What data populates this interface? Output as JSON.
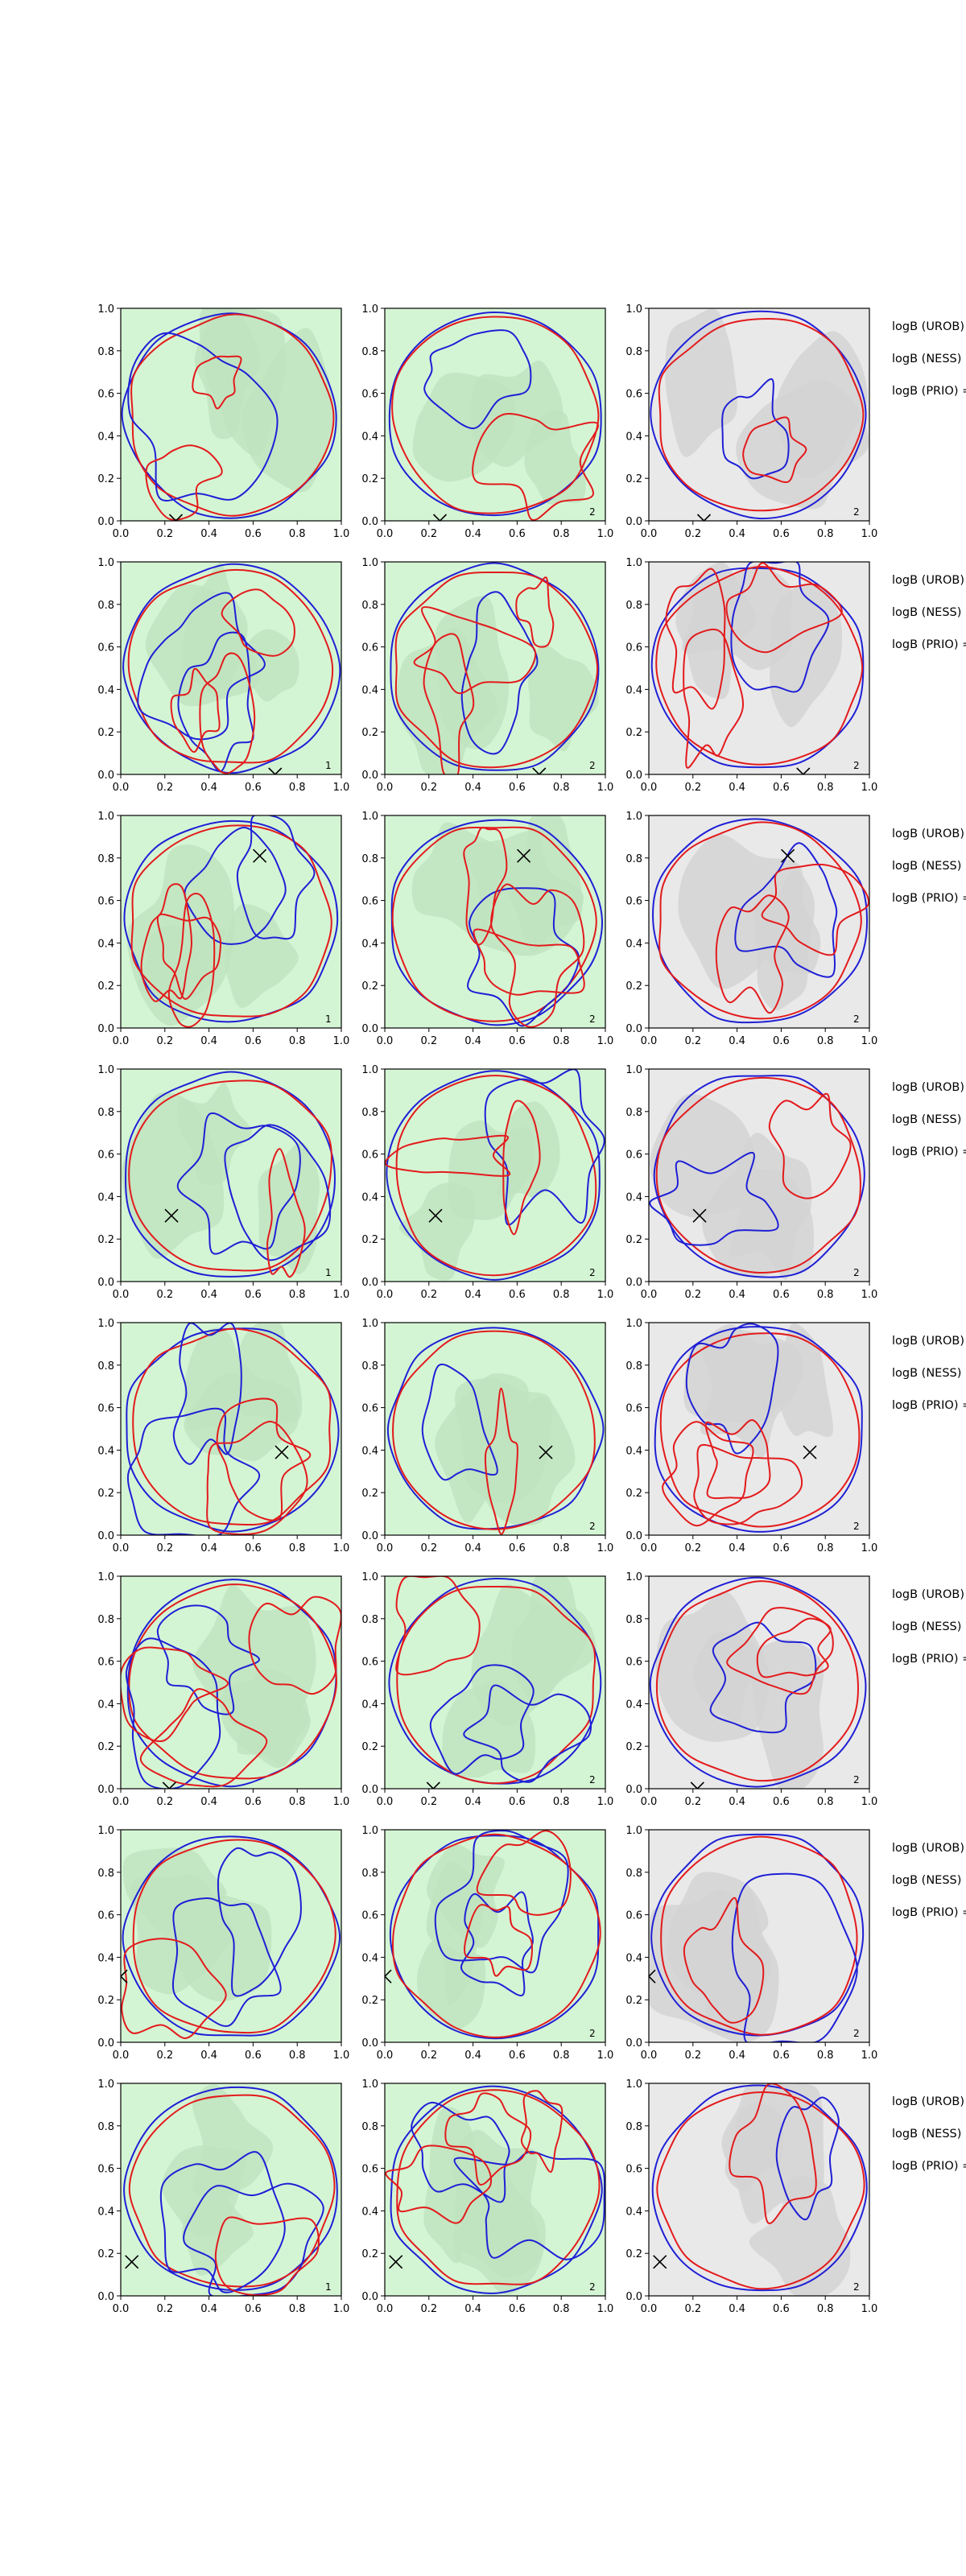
{
  "figure": {
    "description_labels": [
      "logB (UROB) =",
      "logB (NESS) =",
      "logB (PRIO) ="
    ]
  },
  "chart_data": {
    "type": "contour-grid",
    "title": "",
    "xlabel": "",
    "ylabel": "",
    "xlim": [
      0.0,
      1.0
    ],
    "ylim": [
      0.0,
      1.0
    ],
    "x_tick_labels": [
      "0.0",
      "0.2",
      "0.4",
      "0.6",
      "0.8",
      "1.0"
    ],
    "y_tick_labels": [
      "0.0",
      "0.2",
      "0.4",
      "0.6",
      "0.8",
      "1.0"
    ],
    "grid": false,
    "colors": {
      "red_contour": "#e31a1c",
      "blue_contour": "#1f1fd6",
      "green_fill_light": "#d4f5d4",
      "green_fill_mid": "#bfe3bf",
      "gray_fill_light": "#e9e9e9",
      "gray_fill_mid": "#d4d4d4",
      "marker": "#000000"
    },
    "rows": [
      {
        "row_labels": [
          "logB (UROB) =",
          "logB (NESS) =",
          "logB (PRIO) ="
        ],
        "marker": [
          0.25,
          0.0
        ],
        "panel_numbers": [
          "",
          "2",
          "2"
        ]
      },
      {
        "row_labels": [
          "logB (UROB) =",
          "logB (NESS) =",
          "logB (PRIO) ="
        ],
        "marker": [
          0.7,
          0.0
        ],
        "panel_numbers": [
          "1",
          "2",
          "2"
        ]
      },
      {
        "row_labels": [
          "logB (UROB) =",
          "logB (NESS) =",
          "logB (PRIO) ="
        ],
        "marker": [
          0.63,
          0.81
        ],
        "panel_numbers": [
          "1",
          "2",
          "2"
        ]
      },
      {
        "row_labels": [
          "logB (UROB) =",
          "logB (NESS) =",
          "logB (PRIO) ="
        ],
        "marker": [
          0.23,
          0.31
        ],
        "panel_numbers": [
          "1",
          "2",
          "2"
        ]
      },
      {
        "row_labels": [
          "logB (UROB) =",
          "logB (NESS) =",
          "logB (PRIO) ="
        ],
        "marker": [
          0.73,
          0.39
        ],
        "panel_numbers": [
          "",
          "2",
          "2"
        ]
      },
      {
        "row_labels": [
          "logB (UROB) =",
          "logB (NESS) =",
          "logB (PRIO) ="
        ],
        "marker": [
          0.22,
          0.0
        ],
        "panel_numbers": [
          "",
          "2",
          "2"
        ]
      },
      {
        "row_labels": [
          "logB (UROB) =",
          "logB (NESS) =",
          "logB (PRIO) ="
        ],
        "marker": [
          0.0,
          0.31
        ],
        "panel_numbers": [
          "",
          "2",
          "2"
        ]
      },
      {
        "row_labels": [
          "logB (UROB) =",
          "logB (NESS) =",
          "logB (PRIO) ="
        ],
        "marker": [
          0.05,
          0.16
        ],
        "panel_numbers": [
          "1",
          "2",
          "2"
        ]
      }
    ]
  }
}
